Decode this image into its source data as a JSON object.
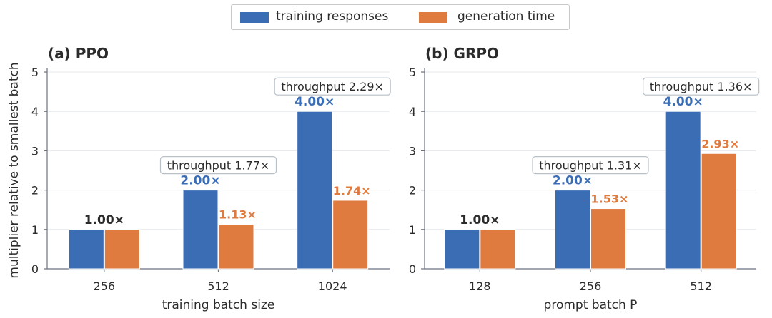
{
  "legend": {
    "items": [
      {
        "label": "training responses",
        "color": "#3b6db5"
      },
      {
        "label": "generation time",
        "color": "#e07b3f"
      }
    ]
  },
  "colors": {
    "text": "#2b2b2b",
    "axis": "#6b7280",
    "grid": "#e5e7eb"
  },
  "chart_data": [
    {
      "type": "bar",
      "title": "(a) PPO",
      "xlabel": "training batch size",
      "ylabel": "multiplier relative to smallest batch",
      "categories": [
        "256",
        "512",
        "1024"
      ],
      "ylim": [
        0,
        5
      ],
      "yticks": [
        "0",
        "1",
        "2",
        "3",
        "4",
        "5"
      ],
      "grid": true,
      "series": [
        {
          "name": "training responses",
          "values": [
            1.0,
            2.0,
            4.0
          ],
          "labels": [
            "1.00×",
            "2.00×",
            "4.00×"
          ]
        },
        {
          "name": "generation time",
          "values": [
            1.0,
            1.13,
            1.74
          ],
          "labels": [
            "",
            "1.13×",
            "1.74×"
          ]
        }
      ],
      "annotations": [
        "",
        "throughput 1.77×",
        "throughput 2.29×"
      ]
    },
    {
      "type": "bar",
      "title": "(b) GRPO",
      "xlabel": "prompt batch P",
      "ylabel": "",
      "categories": [
        "128",
        "256",
        "512"
      ],
      "ylim": [
        0,
        5
      ],
      "yticks": [
        "0",
        "1",
        "2",
        "3",
        "4",
        "5"
      ],
      "grid": true,
      "series": [
        {
          "name": "training responses",
          "values": [
            1.0,
            2.0,
            4.0
          ],
          "labels": [
            "1.00×",
            "2.00×",
            "4.00×"
          ]
        },
        {
          "name": "generation time",
          "values": [
            1.0,
            1.53,
            2.93
          ],
          "labels": [
            "",
            "1.53×",
            "2.93×"
          ]
        }
      ],
      "annotations": [
        "",
        "throughput 1.31×",
        "throughput 1.36×"
      ]
    }
  ]
}
